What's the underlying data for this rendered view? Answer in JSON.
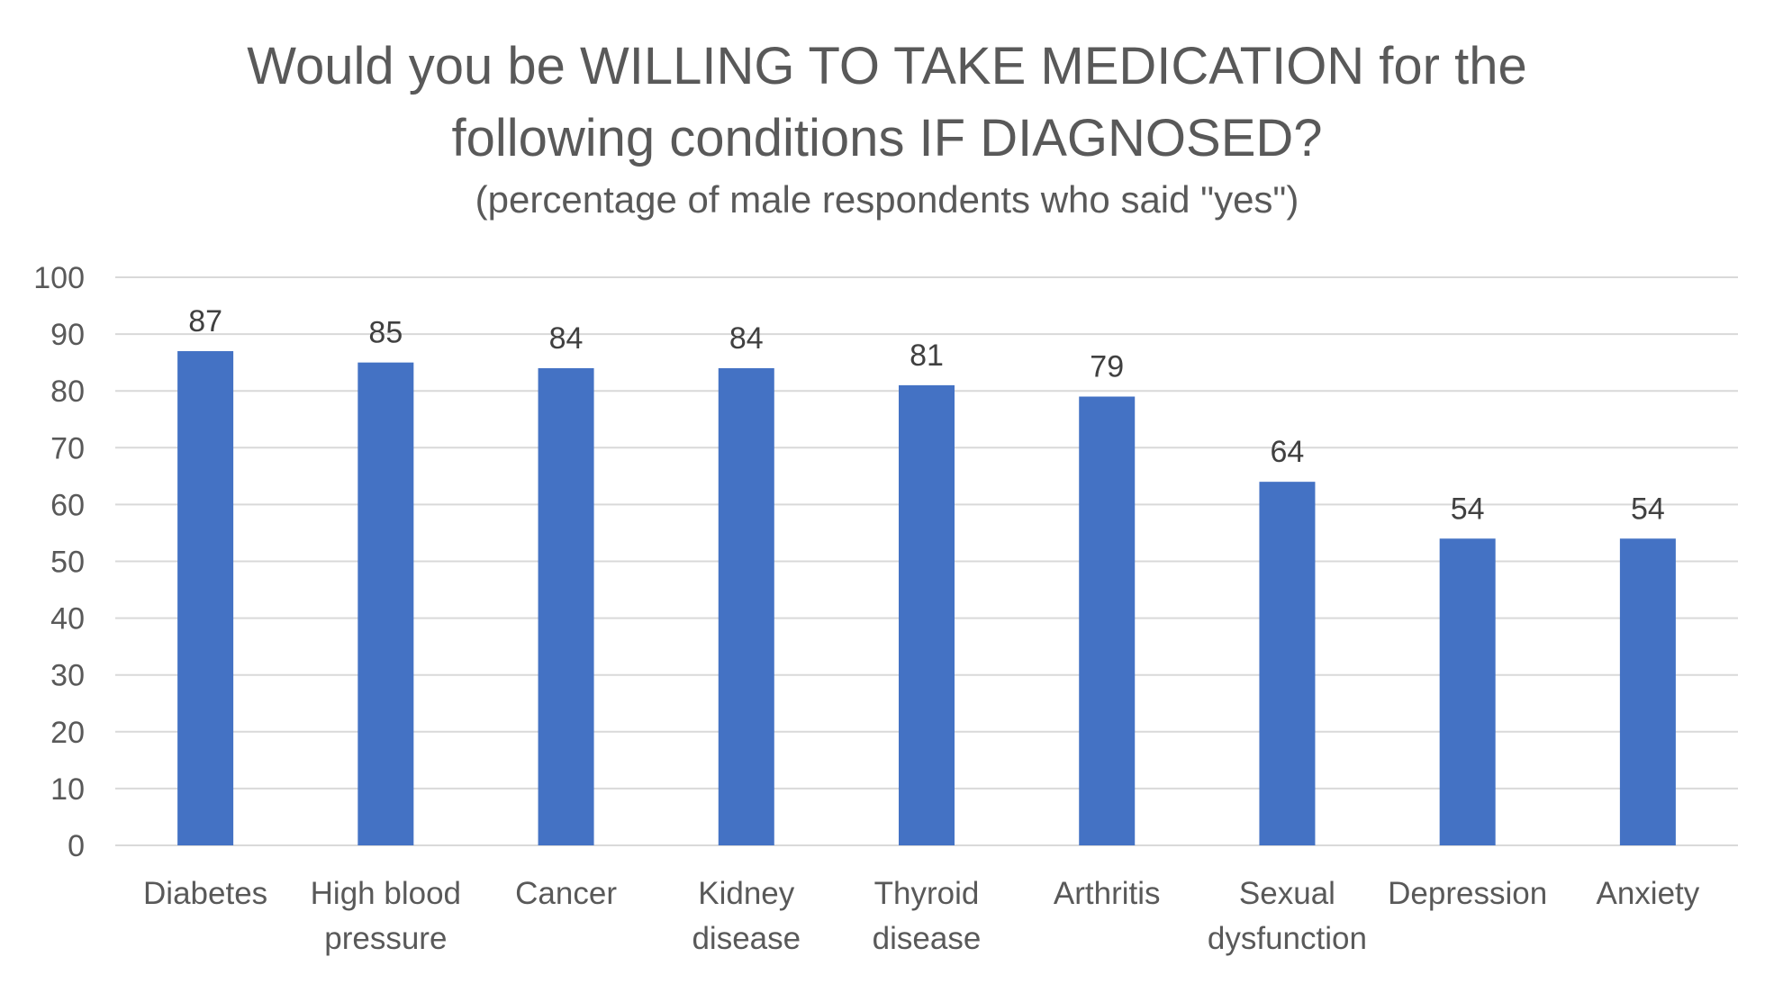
{
  "chart_data": {
    "type": "bar",
    "title_line1": "Would you be WILLING TO TAKE MEDICATION for the",
    "title_line2": "following conditions IF DIAGNOSED?",
    "subtitle": "(percentage of male respondents who said \"yes\")",
    "categories": [
      [
        "Diabetes"
      ],
      [
        "High blood",
        "pressure"
      ],
      [
        "Cancer"
      ],
      [
        "Kidney",
        "disease"
      ],
      [
        "Thyroid",
        "disease"
      ],
      [
        "Arthritis"
      ],
      [
        "Sexual",
        "dysfunction"
      ],
      [
        "Depression"
      ],
      [
        "Anxiety"
      ]
    ],
    "values": [
      87,
      85,
      84,
      84,
      81,
      79,
      64,
      54,
      54
    ],
    "ylim": [
      0,
      100
    ],
    "yticks": [
      0,
      10,
      20,
      30,
      40,
      50,
      60,
      70,
      80,
      90,
      100
    ],
    "grid": true,
    "bar_color": "#4472C4",
    "grid_color": "#d9d9d9"
  }
}
